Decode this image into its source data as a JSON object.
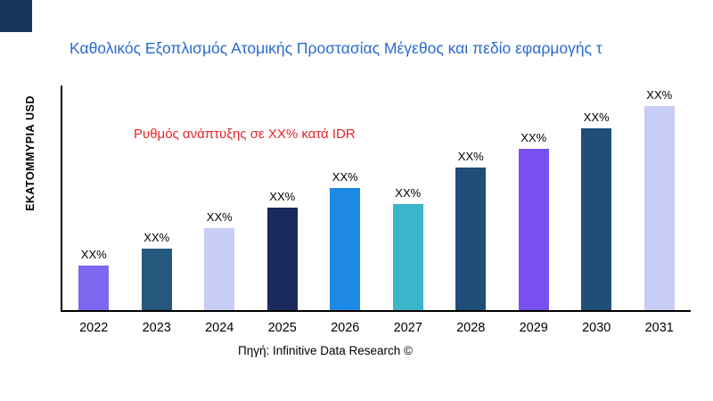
{
  "brand": {
    "corner_color": "#16365c"
  },
  "header": {
    "title": "Καθολικός Εξοπλισμός Ατομικής Προστασίας Μέγεθος και πεδίο εφαρμογής τ",
    "title_color": "#2a6bcf"
  },
  "annotation": {
    "text": "Ρυθμός ανάπτυξης σε XX% κατά IDR",
    "color": "#e62429"
  },
  "source": {
    "text": "Πηγή: Infinitive Data Research ©"
  },
  "chart_data": {
    "type": "bar",
    "title": "Καθολικός Εξοπλισμός Ατομικής Προστασίας Μέγεθος και πεδίο εφαρμογής τ",
    "xlabel": "",
    "ylabel": "ΕΚΑΤΟΜΜΥΡΙΑ USD",
    "categories": [
      "2022",
      "2023",
      "2024",
      "2025",
      "2026",
      "2027",
      "2028",
      "2029",
      "2030",
      "2031"
    ],
    "values": [
      22,
      30,
      40,
      50,
      60,
      52,
      70,
      79,
      89,
      100
    ],
    "value_labels": [
      "XX%",
      "XX%",
      "XX%",
      "XX%",
      "XX%",
      "XX%",
      "XX%",
      "XX%",
      "XX%",
      "XX%"
    ],
    "bar_colors": [
      "#7b68ee",
      "#24587d",
      "#c7cdf4",
      "#1a2a5e",
      "#1e88e5",
      "#3ab5c9",
      "#1f4e79",
      "#7a4ff0",
      "#1f4e79",
      "#c7cdf4"
    ],
    "ylim": [
      0,
      110
    ],
    "grid": false,
    "legend": "none",
    "annotation": "Ρυθμός ανάπτυξης σε XX% κατά IDR",
    "source": "Πηγή: Infinitive Data Research ©"
  }
}
